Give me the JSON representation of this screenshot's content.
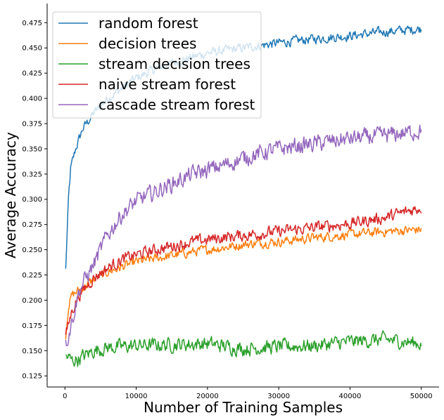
{
  "chart_data": {
    "type": "line",
    "xlabel": "Number of Training Samples",
    "ylabel": "Average Accuracy",
    "xlim": [
      -2500,
      52500
    ],
    "ylim": [
      0.114,
      0.494
    ],
    "xticks": [
      0,
      10000,
      20000,
      30000,
      40000,
      50000
    ],
    "xtick_labels": [
      "0",
      "10000",
      "20000",
      "30000",
      "40000",
      "50000"
    ],
    "yticks": [
      0.125,
      0.15,
      0.175,
      0.2,
      0.225,
      0.25,
      0.275,
      0.3,
      0.325,
      0.35,
      0.375,
      0.4,
      0.425,
      0.45,
      0.475
    ],
    "ytick_labels": [
      "0.125",
      "0.150",
      "0.175",
      "0.200",
      "0.225",
      "0.250",
      "0.275",
      "0.300",
      "0.325",
      "0.350",
      "0.375",
      "0.400",
      "0.425",
      "0.450",
      "0.475"
    ],
    "grid": false,
    "legend_position": "top-left",
    "x_range": [
      100,
      50000
    ],
    "series": [
      {
        "name": "random forest",
        "color": "#1f77b4",
        "points": [
          [
            100,
            0.23
          ],
          [
            500,
            0.3
          ],
          [
            800,
            0.33
          ],
          [
            1500,
            0.35
          ],
          [
            2500,
            0.37
          ],
          [
            4000,
            0.385
          ],
          [
            6000,
            0.4
          ],
          [
            8000,
            0.41
          ],
          [
            10000,
            0.42
          ],
          [
            13000,
            0.43
          ],
          [
            16000,
            0.437
          ],
          [
            20000,
            0.445
          ],
          [
            25000,
            0.45
          ],
          [
            30000,
            0.455
          ],
          [
            35000,
            0.459
          ],
          [
            40000,
            0.462
          ],
          [
            45000,
            0.466
          ],
          [
            50000,
            0.469
          ]
        ],
        "noise": 0.004
      },
      {
        "name": "decision trees",
        "color": "#ff7f0e",
        "points": [
          [
            100,
            0.165
          ],
          [
            500,
            0.195
          ],
          [
            1000,
            0.205
          ],
          [
            2000,
            0.21
          ],
          [
            4000,
            0.22
          ],
          [
            6000,
            0.228
          ],
          [
            8000,
            0.233
          ],
          [
            10000,
            0.238
          ],
          [
            14000,
            0.243
          ],
          [
            18000,
            0.248
          ],
          [
            22000,
            0.252
          ],
          [
            26000,
            0.256
          ],
          [
            30000,
            0.258
          ],
          [
            35000,
            0.262
          ],
          [
            40000,
            0.265
          ],
          [
            45000,
            0.268
          ],
          [
            50000,
            0.27
          ]
        ],
        "noise": 0.004
      },
      {
        "name": "stream decision trees",
        "color": "#2ca02c",
        "points": [
          [
            100,
            0.145
          ],
          [
            1000,
            0.14
          ],
          [
            2000,
            0.142
          ],
          [
            4000,
            0.15
          ],
          [
            6000,
            0.153
          ],
          [
            10000,
            0.155
          ],
          [
            15000,
            0.156
          ],
          [
            20000,
            0.157
          ],
          [
            25000,
            0.152
          ],
          [
            30000,
            0.154
          ],
          [
            35000,
            0.155
          ],
          [
            40000,
            0.159
          ],
          [
            45000,
            0.161
          ],
          [
            50000,
            0.157
          ]
        ],
        "noise": 0.006
      },
      {
        "name": "naive stream forest",
        "color": "#d62728",
        "points": [
          [
            100,
            0.165
          ],
          [
            1000,
            0.19
          ],
          [
            2000,
            0.205
          ],
          [
            4000,
            0.222
          ],
          [
            6000,
            0.232
          ],
          [
            8000,
            0.24
          ],
          [
            10000,
            0.245
          ],
          [
            14000,
            0.252
          ],
          [
            18000,
            0.258
          ],
          [
            22000,
            0.262
          ],
          [
            26000,
            0.265
          ],
          [
            30000,
            0.268
          ],
          [
            35000,
            0.272
          ],
          [
            40000,
            0.276
          ],
          [
            45000,
            0.282
          ],
          [
            50000,
            0.292
          ]
        ],
        "noise": 0.005
      },
      {
        "name": "cascade stream forest",
        "color": "#9467bd",
        "points": [
          [
            100,
            0.155
          ],
          [
            1000,
            0.18
          ],
          [
            2000,
            0.21
          ],
          [
            4000,
            0.235
          ],
          [
            6000,
            0.265
          ],
          [
            8000,
            0.285
          ],
          [
            10000,
            0.298
          ],
          [
            14000,
            0.312
          ],
          [
            18000,
            0.325
          ],
          [
            22000,
            0.333
          ],
          [
            26000,
            0.343
          ],
          [
            30000,
            0.35
          ],
          [
            35000,
            0.355
          ],
          [
            40000,
            0.36
          ],
          [
            45000,
            0.363
          ],
          [
            50000,
            0.368
          ]
        ],
        "noise": 0.007
      }
    ]
  }
}
